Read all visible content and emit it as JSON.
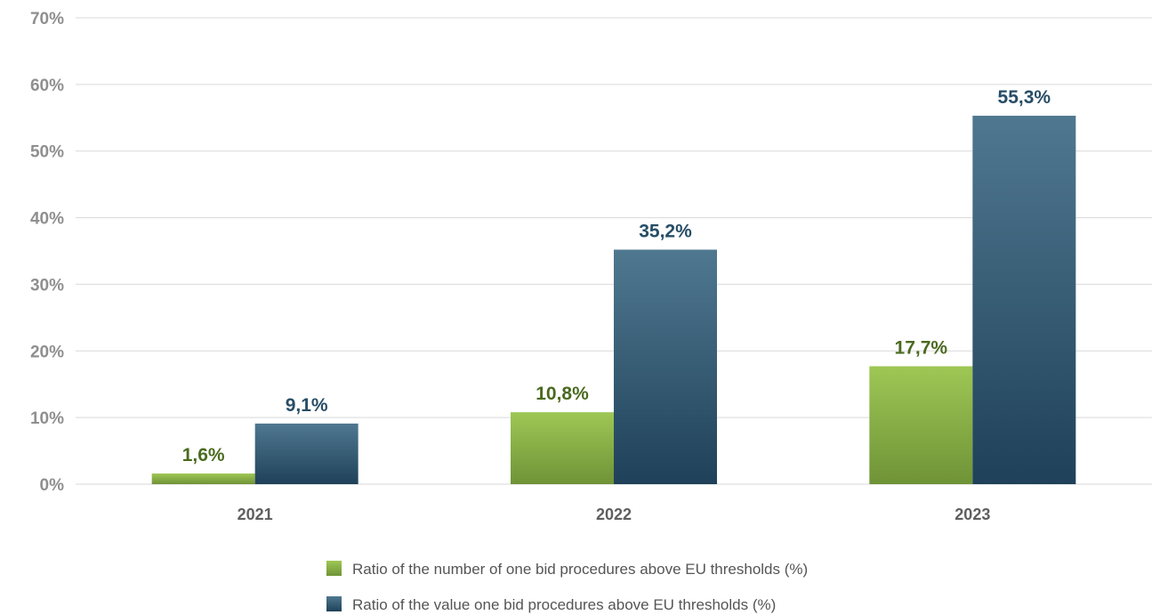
{
  "chart_data": {
    "type": "bar",
    "categories": [
      "2021",
      "2022",
      "2023"
    ],
    "series": [
      {
        "name": "Ratio of the number of one bid procedures above EU thresholds (%)",
        "values": [
          1.6,
          10.8,
          17.7
        ],
        "labels": [
          "1,6%",
          "10,8%",
          "17,7%"
        ],
        "color": "#7fa640",
        "label_color": "#4a6a1f"
      },
      {
        "name": "Ratio of the value one bid procedures above EU thresholds (%)",
        "values": [
          9.1,
          35.2,
          55.3
        ],
        "labels": [
          "9,1%",
          "35,2%",
          "55,3%"
        ],
        "color": "#35586f",
        "label_color": "#274d66"
      }
    ],
    "y_ticks": [
      "0%",
      "10%",
      "20%",
      "30%",
      "40%",
      "50%",
      "60%",
      "70%"
    ],
    "ylim": [
      0,
      70
    ],
    "grid": true,
    "legend_position": "bottom-center"
  }
}
